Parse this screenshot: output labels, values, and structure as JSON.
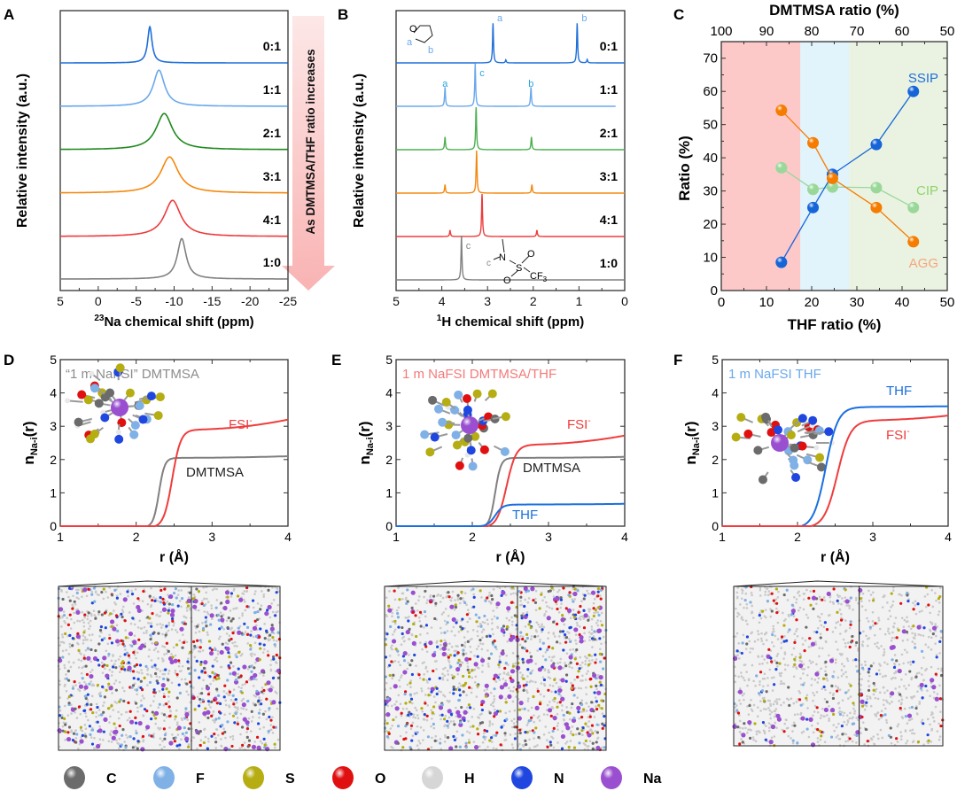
{
  "panel_labels": [
    "A",
    "B",
    "C",
    "D",
    "E",
    "F"
  ],
  "arrow_text": "As DMTMSA/THF ratio increases",
  "chart_data": [
    {
      "id": "A",
      "type": "line",
      "title": "",
      "xlabel_sup": "23",
      "xlabel": "Na chemical shift (ppm)",
      "ylabel": "Relative intensity (a.u.)",
      "xlim": [
        5,
        -25
      ],
      "xticks": [
        5,
        0,
        -5,
        -10,
        -15,
        -20,
        -25
      ],
      "series": [
        {
          "name": "0:1",
          "color": "#1f6fd9",
          "peak_ppm": -6.8,
          "width_ppm": 0.35,
          "height": 0.85
        },
        {
          "name": "1:1",
          "color": "#6aa8ec",
          "peak_ppm": -8.0,
          "width_ppm": 0.9,
          "height": 0.85
        },
        {
          "name": "2:1",
          "color": "#1e8a1e",
          "peak_ppm": -8.7,
          "width_ppm": 1.3,
          "height": 0.85
        },
        {
          "name": "3:1",
          "color": "#f5880f",
          "peak_ppm": -9.4,
          "width_ppm": 1.4,
          "height": 0.85
        },
        {
          "name": "4:1",
          "color": "#ee3b3b",
          "peak_ppm": -9.8,
          "width_ppm": 1.3,
          "height": 0.85
        },
        {
          "name": "1:0",
          "color": "#808080",
          "peak_ppm": -11.0,
          "width_ppm": 0.7,
          "height": 0.95
        }
      ]
    },
    {
      "id": "B",
      "type": "line",
      "xlabel_sup": "1",
      "xlabel": "H chemical shift (ppm)",
      "ylabel": "Relative intensity (a.u.)",
      "xlim": [
        5,
        0
      ],
      "xticks": [
        5,
        4,
        3,
        2,
        1,
        0
      ],
      "series": [
        {
          "name": "0:1",
          "color": "#1f6fd9",
          "peaks": [
            [
              2.88,
              0.95
            ],
            [
              2.6,
              0.07
            ],
            [
              1.04,
              0.95
            ],
            [
              0.82,
              0.08
            ]
          ]
        },
        {
          "name": "1:1",
          "color": "#6aa8ec",
          "peaks": [
            [
              3.93,
              0.45
            ],
            [
              3.27,
              1.0
            ],
            [
              2.05,
              0.45
            ]
          ]
        },
        {
          "name": "2:1",
          "color": "#4caf50",
          "peaks": [
            [
              3.93,
              0.3
            ],
            [
              3.25,
              1.0
            ],
            [
              2.04,
              0.3
            ]
          ]
        },
        {
          "name": "3:1",
          "color": "#f5880f",
          "peaks": [
            [
              3.93,
              0.2
            ],
            [
              3.24,
              1.0
            ],
            [
              2.03,
              0.2
            ]
          ]
        },
        {
          "name": "4:1",
          "color": "#ee3b3b",
          "peaks": [
            [
              3.82,
              0.15
            ],
            [
              3.12,
              1.0
            ],
            [
              1.92,
              0.15
            ]
          ]
        },
        {
          "name": "1:0",
          "color": "#808080",
          "peaks": [
            [
              3.57,
              1.0
            ]
          ]
        }
      ],
      "annotations": {
        "thf_labels": [
          "a",
          "b"
        ],
        "peak_labels_01": [
          "a",
          "b"
        ],
        "peak_labels_11": [
          "a",
          "c",
          "b"
        ],
        "peak_label_10": "c",
        "dmtmsa_struct": {
          "n": "N",
          "s": "S",
          "o1": "O",
          "o2": "O",
          "cf3": "CF",
          "sub3": "3",
          "c": "c"
        },
        "thf_struct": {
          "o": "O"
        }
      }
    },
    {
      "id": "C",
      "type": "scatter",
      "xlabel": "THF ratio (%)",
      "x2label": "DMTMSA ratio (%)",
      "ylabel": "Ratio (%)",
      "xlim": [
        0,
        50
      ],
      "ylim": [
        0,
        75
      ],
      "xticks": [
        0,
        10,
        20,
        30,
        40,
        50
      ],
      "x2ticks": [
        100,
        90,
        80,
        70,
        60,
        50
      ],
      "yticks": [
        0,
        10,
        20,
        30,
        40,
        50,
        60,
        70
      ],
      "regions": [
        {
          "from": 0,
          "to": 17.5,
          "color": "#fdc8c8"
        },
        {
          "from": 17.5,
          "to": 28.3,
          "color": "#e1f3fb"
        },
        {
          "from": 28.3,
          "to": 50,
          "color": "#eaf3e2"
        }
      ],
      "x": [
        13.3,
        20.3,
        24.6,
        34.3,
        42.5
      ],
      "series": [
        {
          "name": "CIP",
          "color": "#9ad89a",
          "label_color": "#8fd36b",
          "values": [
            37,
            30.5,
            31.2,
            31,
            25
          ]
        },
        {
          "name": "SSIP",
          "color": "#1565d8",
          "label_color": "#1f6fd9",
          "values": [
            8.5,
            25,
            35,
            44,
            60
          ]
        },
        {
          "name": "AGG",
          "color": "#f57c00",
          "label_color": "#f6a57a",
          "values": [
            54.3,
            44.5,
            33.8,
            25,
            14.7
          ]
        }
      ]
    },
    {
      "id": "D",
      "type": "line",
      "title": "“1 m NaFSI” DMTMSA",
      "title_color": "#8c8c8c",
      "xlabel": "r (Å)",
      "ylabel_main": "n",
      "ylabel_sub": "Na-i",
      "ylabel_tail": "(r)",
      "xlim": [
        1,
        4
      ],
      "ylim": [
        0,
        5
      ],
      "xticks": [
        1,
        2,
        3,
        4
      ],
      "yticks": [
        0,
        1,
        2,
        3,
        4,
        5
      ],
      "series": [
        {
          "name": "DMTMSA",
          "color": "#808080",
          "label_color": "#222222",
          "onset": 2.15,
          "rise": 0.3,
          "plateau": 2.05,
          "end": 2.1,
          "x0": 2.15
        },
        {
          "name": "FSI",
          "sup": "-",
          "color": "#f03c3c",
          "label_color": "#f03c3c",
          "onset": 2.25,
          "rise": 0.45,
          "plateau": 2.9,
          "end": 3.2,
          "x0": 2.25
        }
      ]
    },
    {
      "id": "E",
      "type": "line",
      "title": "1 m NaFSI DMTMSA/THF",
      "title_color": "#f47a7a",
      "xlabel": "r (Å)",
      "ylabel_main": "n",
      "ylabel_sub": "Na-i",
      "ylabel_tail": "(r)",
      "xlim": [
        1,
        4
      ],
      "ylim": [
        0,
        5
      ],
      "xticks": [
        1,
        2,
        3,
        4
      ],
      "yticks": [
        0,
        1,
        2,
        3,
        4,
        5
      ],
      "series": [
        {
          "name": "DMTMSA",
          "color": "#808080",
          "label_color": "#222222",
          "onset": 2.15,
          "rise": 0.3,
          "plateau": 2.05,
          "end": 2.08,
          "x0": 2.15
        },
        {
          "name": "FSI",
          "sup": "-",
          "color": "#f03c3c",
          "label_color": "#f03c3c",
          "onset": 2.2,
          "rise": 0.5,
          "plateau": 2.45,
          "end": 2.72,
          "x0": 2.2
        },
        {
          "name": "THF",
          "color": "#1a6fe0",
          "label_color": "#1a6fe0",
          "onset": 2.1,
          "rise": 0.4,
          "plateau": 0.65,
          "end": 0.67,
          "x0": 2.1
        }
      ]
    },
    {
      "id": "F",
      "type": "line",
      "title": "1 m NaFSI THF",
      "title_color": "#6aa8ec",
      "xlabel": "r (Å)",
      "ylabel_main": "n",
      "ylabel_sub": "Na-i",
      "ylabel_tail": "(r)",
      "xlim": [
        1,
        4
      ],
      "ylim": [
        0,
        5
      ],
      "xticks": [
        1,
        2,
        3,
        4
      ],
      "yticks": [
        0,
        1,
        2,
        3,
        4,
        5
      ],
      "series": [
        {
          "name": "THF",
          "color": "#1a6fe0",
          "label_color": "#1a6fe0",
          "onset": 2.05,
          "rise": 0.65,
          "plateau": 3.58,
          "end": 3.6,
          "x0": 2.05
        },
        {
          "name": "FSI",
          "sup": "-",
          "color": "#f03c3c",
          "label_color": "#f03c3c",
          "onset": 2.18,
          "rise": 0.7,
          "plateau": 3.18,
          "end": 3.32,
          "x0": 2.18
        }
      ]
    }
  ],
  "legend": [
    {
      "label": "C",
      "color": "#6b6b6b"
    },
    {
      "label": "F",
      "color": "#7fb0e6"
    },
    {
      "label": "S",
      "color": "#b5ad12"
    },
    {
      "label": "O",
      "color": "#e01010"
    },
    {
      "label": "H",
      "color": "#d6d6d6"
    },
    {
      "label": "N",
      "color": "#1f47e0"
    },
    {
      "label": "Na",
      "color": "#9a4fd0"
    }
  ]
}
